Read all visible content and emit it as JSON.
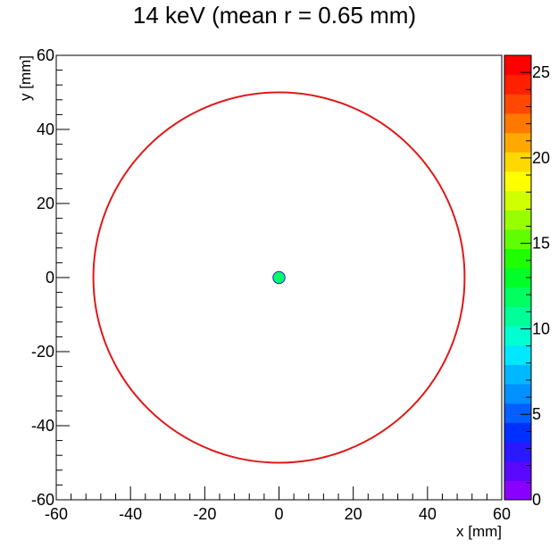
{
  "chart_data": {
    "type": "heatmap",
    "title": "14 keV (mean r = 0.65 mm)",
    "xlabel": "x [mm]",
    "ylabel": "y [mm]",
    "xlim": [
      -60,
      60
    ],
    "ylim": [
      -60,
      60
    ],
    "x_ticks": [
      "-60",
      "-40",
      "-20",
      "0",
      "20",
      "40",
      "60"
    ],
    "y_ticks": [
      "-60",
      "-40",
      "-20",
      "0",
      "20",
      "40",
      "60"
    ],
    "grid": false,
    "circle": {
      "cx": 0,
      "cy": 0,
      "r": 50,
      "color": "#e01818"
    },
    "spot": {
      "x": 0,
      "y": 0,
      "r": 0.65,
      "value": 12
    },
    "colorbar": {
      "min": 0,
      "max": 26,
      "ticks": [
        "0",
        "5",
        "10",
        "15",
        "20",
        "25"
      ],
      "tick_values": [
        0,
        5,
        10,
        15,
        20,
        25
      ],
      "colors": [
        "#8a00ff",
        "#5a08ff",
        "#2a18ff",
        "#0030ff",
        "#0060ff",
        "#0090ff",
        "#00b8ff",
        "#00e8ff",
        "#00ffd0",
        "#00ff98",
        "#00ff60",
        "#00ff28",
        "#20ff00",
        "#60ff00",
        "#98ff00",
        "#d0ff00",
        "#ffff00",
        "#ffd800",
        "#ffa800",
        "#ff7800",
        "#ff4800",
        "#ff2000",
        "#ff0000"
      ]
    }
  }
}
